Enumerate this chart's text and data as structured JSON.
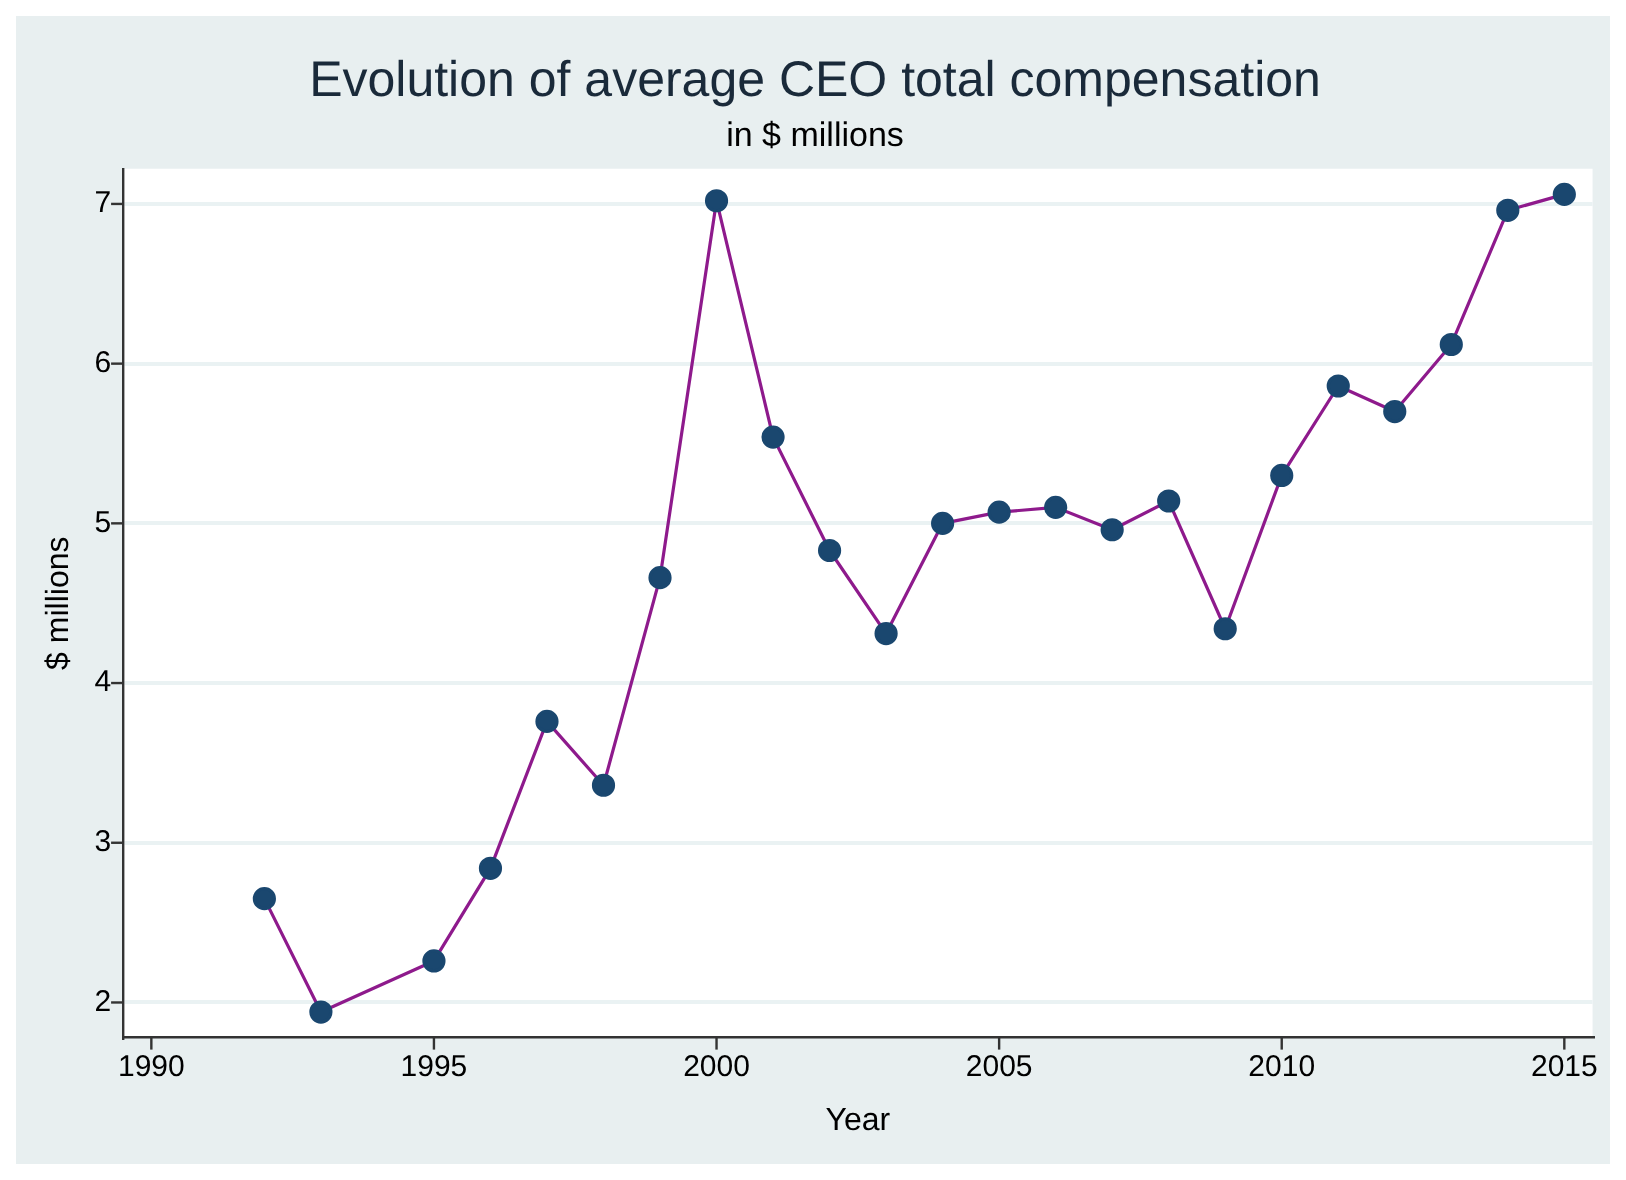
{
  "chart_data": {
    "type": "line",
    "title": "Evolution of average CEO total compensation",
    "subtitle": "in $ millions",
    "xlabel": "Year",
    "ylabel": "$ millions",
    "x": [
      1992,
      1993,
      1995,
      1996,
      1997,
      1998,
      1999,
      2000,
      2001,
      2002,
      2003,
      2004,
      2005,
      2006,
      2007,
      2008,
      2009,
      2010,
      2011,
      2012,
      2013,
      2014,
      2015
    ],
    "series": [
      {
        "color": "#1a476f",
        "values": [
          2.65,
          1.94,
          2.26,
          2.84,
          3.76,
          3.36,
          4.66,
          7.02,
          5.54,
          4.83,
          4.31,
          5.0,
          5.07,
          5.1,
          4.96,
          5.14,
          4.34,
          5.3,
          5.86,
          5.7,
          6.12,
          6.96,
          7.06
        ]
      }
    ],
    "xlim": [
      1989.5,
      2015.5
    ],
    "xticks": [
      1990,
      1995,
      2000,
      2005,
      2010,
      2015
    ],
    "ylim": [
      1.78,
      7.22
    ],
    "yticks": [
      2,
      3,
      4,
      5,
      6,
      7
    ],
    "grid": "y",
    "legend": false,
    "marker": "circle",
    "line_style": "solid"
  }
}
